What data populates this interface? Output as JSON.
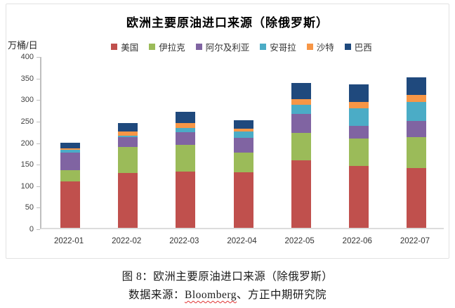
{
  "chart_data": {
    "type": "bar",
    "stacked": true,
    "title": "欧洲主要原油进口来源（除俄罗斯）",
    "xlabel": "",
    "ylabel": "万桶/日",
    "ylim": [
      0,
      400
    ],
    "y_ticks": [
      0,
      50,
      100,
      150,
      200,
      250,
      300,
      350,
      400
    ],
    "grid": false,
    "legend_position": "top",
    "categories": [
      "2022-01",
      "2022-02",
      "2022-03",
      "2022-04",
      "2022-05",
      "2022-06",
      "2022-07"
    ],
    "series": [
      {
        "name": "美国",
        "color": "#C0504D",
        "values": [
          107,
          128,
          130,
          129,
          156,
          144,
          139
        ]
      },
      {
        "name": "伊拉克",
        "color": "#9BBB59",
        "values": [
          27,
          60,
          62,
          45,
          65,
          63,
          72
        ]
      },
      {
        "name": "阿尔及利亚",
        "color": "#8064A2",
        "values": [
          41,
          22,
          30,
          35,
          43,
          29,
          38
        ]
      },
      {
        "name": "安哥拉",
        "color": "#4BACC6",
        "values": [
          7,
          4,
          10,
          15,
          22,
          42,
          43
        ]
      },
      {
        "name": "沙特",
        "color": "#F79646",
        "values": [
          3,
          9,
          12,
          7,
          12,
          14,
          17
        ]
      },
      {
        "name": "巴西",
        "color": "#1F497D",
        "values": [
          12,
          20,
          26,
          19,
          39,
          41,
          40
        ]
      }
    ],
    "totals": [
      197,
      243,
      270,
      250,
      337,
      333,
      349
    ]
  },
  "captions": {
    "figure": "图 8：欧洲主要原油进口来源（除俄罗斯）",
    "source_prefix": "数据来源：",
    "source_highlight": "Bloomberg",
    "source_suffix": "、方正中期研究院"
  }
}
